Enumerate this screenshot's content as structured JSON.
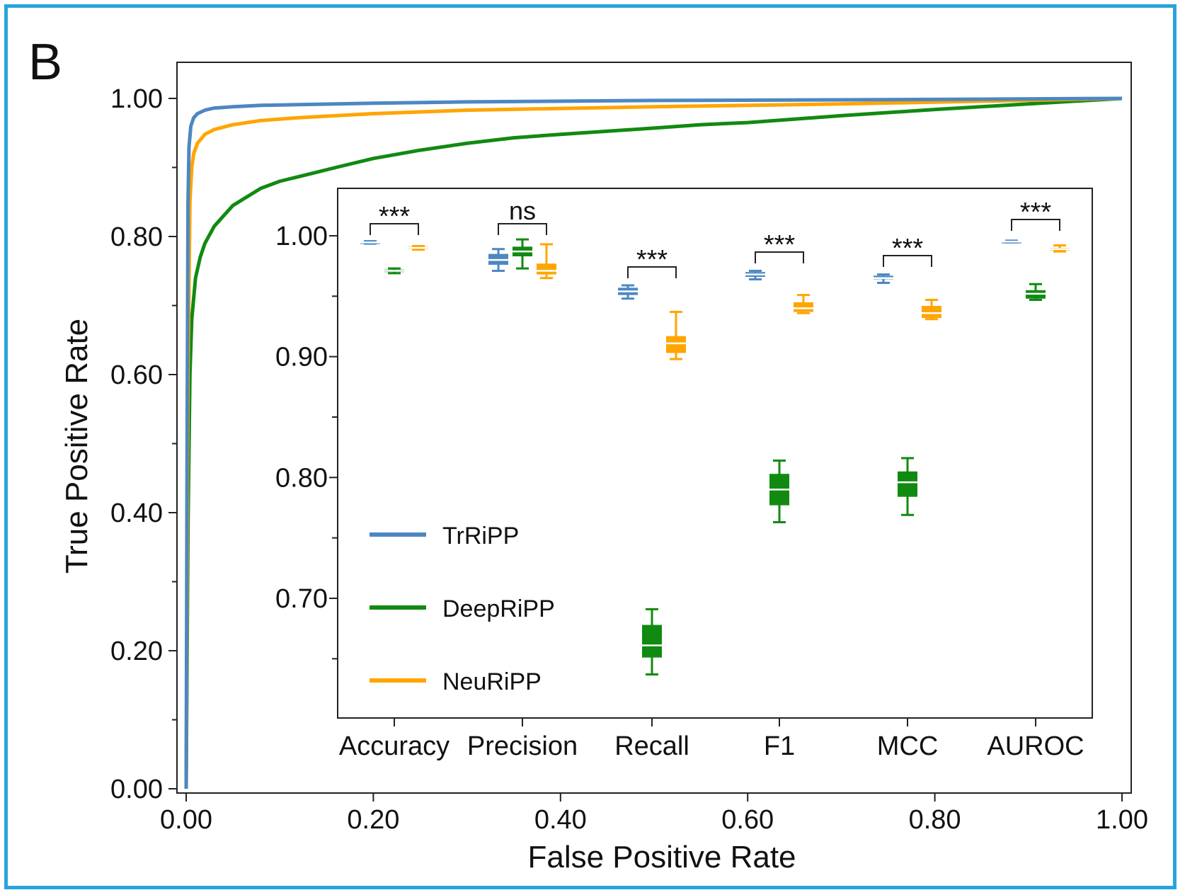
{
  "panel_label": "B",
  "colors": {
    "trripp": "#4d87c2",
    "deepripp": "#118a11",
    "neuripp": "#ffa500",
    "frame": "#29a3dd"
  },
  "chart_data": [
    {
      "type": "line",
      "xlabel": "False Positive Rate",
      "ylabel": "True Positive Rate",
      "xlim": [
        0,
        1
      ],
      "ylim": [
        0,
        1
      ],
      "xticks": [
        "0.00",
        "0.20",
        "0.40",
        "0.60",
        "0.80",
        "1.00"
      ],
      "yticks": [
        "0.00",
        "0.20",
        "0.40",
        "0.60",
        "0.80",
        "1.00"
      ],
      "grid": false,
      "series": [
        {
          "name": "TrRiPP",
          "color": "#4d87c2",
          "x": [
            0,
            0.001,
            0.002,
            0.003,
            0.005,
            0.008,
            0.012,
            0.02,
            0.03,
            0.05,
            0.08,
            0.12,
            0.2,
            0.3,
            0.5,
            0.7,
            1.0
          ],
          "y": [
            0,
            0.5,
            0.85,
            0.93,
            0.96,
            0.972,
            0.978,
            0.983,
            0.986,
            0.988,
            0.99,
            0.991,
            0.993,
            0.995,
            0.997,
            0.998,
            1.0
          ]
        },
        {
          "name": "DeepRiPP",
          "color": "#118a11",
          "x": [
            0,
            0.002,
            0.004,
            0.006,
            0.01,
            0.015,
            0.02,
            0.03,
            0.05,
            0.08,
            0.1,
            0.13,
            0.16,
            0.2,
            0.25,
            0.3,
            0.35,
            0.4,
            0.5,
            0.55,
            0.6,
            0.7,
            0.8,
            0.9,
            1.0
          ],
          "y": [
            0,
            0.38,
            0.6,
            0.68,
            0.74,
            0.77,
            0.79,
            0.815,
            0.845,
            0.87,
            0.88,
            0.89,
            0.9,
            0.913,
            0.925,
            0.935,
            0.943,
            0.948,
            0.957,
            0.962,
            0.965,
            0.975,
            0.984,
            0.992,
            1.0
          ]
        },
        {
          "name": "NeuRiPP",
          "color": "#ffa500",
          "x": [
            0,
            0.002,
            0.004,
            0.006,
            0.008,
            0.012,
            0.02,
            0.03,
            0.05,
            0.08,
            0.12,
            0.2,
            0.3,
            0.5,
            0.7,
            0.85,
            1.0
          ],
          "y": [
            0,
            0.6,
            0.85,
            0.9,
            0.92,
            0.935,
            0.948,
            0.955,
            0.962,
            0.968,
            0.972,
            0.978,
            0.983,
            0.988,
            0.992,
            0.996,
            1.0
          ]
        }
      ]
    },
    {
      "type": "box",
      "inset": true,
      "categories": [
        "Accuracy",
        "Precision",
        "Recall",
        "F1",
        "MCC",
        "AUROC"
      ],
      "ylim": [
        0.6,
        1.02
      ],
      "yticks": [
        "1.00",
        "0.90",
        "0.80",
        "0.70"
      ],
      "legend": "lower-left",
      "series": [
        {
          "name": "TrRiPP",
          "color": "#4d87c2",
          "boxes": [
            {
              "min": 0.9935,
              "q1": 0.994,
              "median": 0.9945,
              "q3": 0.995,
              "max": 0.9955
            },
            {
              "min": 0.971,
              "q1": 0.976,
              "median": 0.98,
              "q3": 0.985,
              "max": 0.989
            },
            {
              "min": 0.948,
              "q1": 0.951,
              "median": 0.954,
              "q3": 0.957,
              "max": 0.959
            },
            {
              "min": 0.964,
              "q1": 0.966,
              "median": 0.968,
              "q3": 0.97,
              "max": 0.971
            },
            {
              "min": 0.961,
              "q1": 0.964,
              "median": 0.965,
              "q3": 0.967,
              "max": 0.968
            },
            {
              "min": 0.9945,
              "q1": 0.995,
              "median": 0.9952,
              "q3": 0.9955,
              "max": 0.996
            }
          ]
        },
        {
          "name": "DeepRiPP",
          "color": "#118a11",
          "boxes": [
            {
              "min": 0.969,
              "q1": 0.97,
              "median": 0.971,
              "q3": 0.972,
              "max": 0.973
            },
            {
              "min": 0.973,
              "q1": 0.983,
              "median": 0.987,
              "q3": 0.991,
              "max": 0.997
            },
            {
              "min": 0.637,
              "q1": 0.651,
              "median": 0.661,
              "q3": 0.678,
              "max": 0.691
            },
            {
              "min": 0.763,
              "q1": 0.777,
              "median": 0.79,
              "q3": 0.803,
              "max": 0.814
            },
            {
              "min": 0.769,
              "q1": 0.784,
              "median": 0.796,
              "q3": 0.805,
              "max": 0.816
            },
            {
              "min": 0.947,
              "q1": 0.948,
              "median": 0.952,
              "q3": 0.955,
              "max": 0.96
            }
          ]
        },
        {
          "name": "NeuRiPP",
          "color": "#ffa500",
          "boxes": [
            {
              "min": 0.9885,
              "q1": 0.989,
              "median": 0.99,
              "q3": 0.991,
              "max": 0.9915
            },
            {
              "min": 0.965,
              "q1": 0.968,
              "median": 0.971,
              "q3": 0.977,
              "max": 0.993
            },
            {
              "min": 0.898,
              "q1": 0.903,
              "median": 0.911,
              "q3": 0.917,
              "max": 0.937
            },
            {
              "min": 0.936,
              "q1": 0.937,
              "median": 0.94,
              "q3": 0.945,
              "max": 0.951
            },
            {
              "min": 0.931,
              "q1": 0.932,
              "median": 0.936,
              "q3": 0.942,
              "max": 0.947
            },
            {
              "min": 0.987,
              "q1": 0.988,
              "median": 0.989,
              "q3": 0.99,
              "max": 0.992
            }
          ]
        }
      ],
      "annotations": [
        "***",
        "ns",
        "***",
        "***",
        "***",
        "***"
      ]
    }
  ]
}
